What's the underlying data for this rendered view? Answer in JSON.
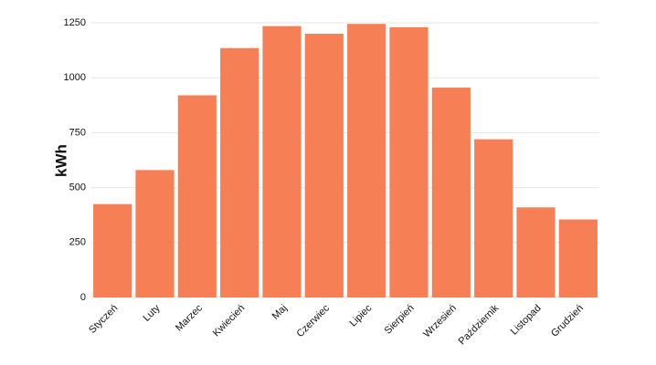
{
  "chart_data": {
    "type": "bar",
    "y_label": "kWh",
    "categories": [
      "Styczeń",
      "Luty",
      "Marzec",
      "Kwiecień",
      "Maj",
      "Czerwiec",
      "Lipiec",
      "Sierpień",
      "Wrzesień",
      "Październik",
      "Listopad",
      "Grudzień"
    ],
    "values": [
      425,
      580,
      920,
      1135,
      1235,
      1200,
      1245,
      1230,
      955,
      720,
      410,
      355
    ],
    "color": "#f77f56",
    "ylim": [
      0,
      1250
    ],
    "yticks": [
      0,
      250,
      500,
      750,
      1000,
      1250
    ],
    "grid": true
  }
}
